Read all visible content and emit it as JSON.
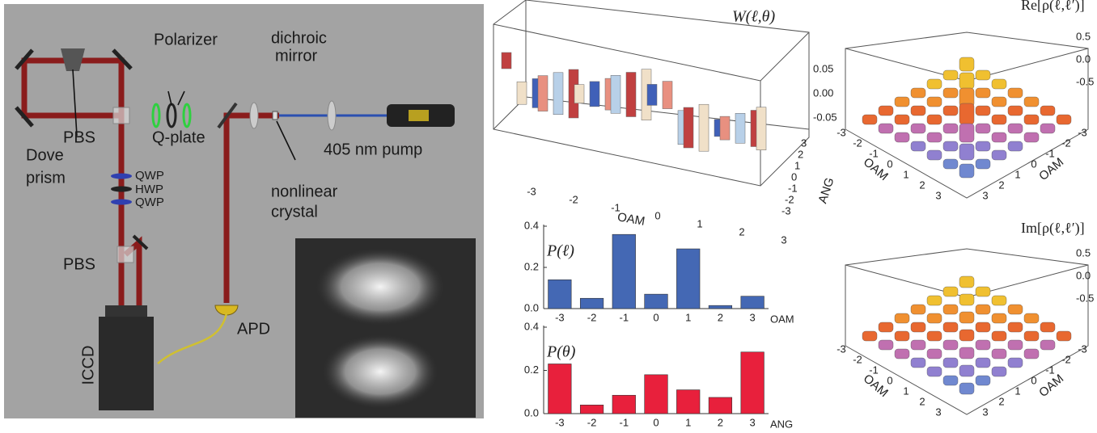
{
  "setup": {
    "polarizer": "Polarizer",
    "dichroic": "dichroic",
    "mirror": "mirror",
    "pbs_top": "PBS",
    "qplate": "Q-plate",
    "dove": "Dove",
    "prism": "prism",
    "pump": "405 nm pump",
    "qwp1": "QWP",
    "hwp": "HWP",
    "qwp2": "QWP",
    "nonlinear": "nonlinear",
    "crystal": "crystal",
    "pbs_bottom": "PBS",
    "apd": "APD",
    "iccd": "ICCD"
  },
  "wigner": {
    "title": "W(ℓ,θ)",
    "zticks": [
      "0.05",
      "0.00",
      "-0.05"
    ],
    "oam_ticks": [
      "-3",
      "-2",
      "-1",
      "0",
      "1",
      "2",
      "3"
    ],
    "ang_ticks": [
      "3",
      "2",
      "1",
      "0",
      "-1",
      "-2",
      "-3"
    ],
    "xlabel": "OAM",
    "ylabel": "ANG"
  },
  "density": [
    {
      "title": "Re[ρ(ℓ,ℓ′)]",
      "zticks": [
        "0.5",
        "0.0",
        "-0.5"
      ],
      "left_ticks": [
        "-3",
        "-2",
        "-1",
        "0",
        "1",
        "2",
        "3"
      ],
      "right_ticks": [
        "-3",
        "-2",
        "-1",
        "0",
        "1",
        "2",
        "3"
      ],
      "left_label": "OAM",
      "right_label": "OAM"
    },
    {
      "title": "Im[ρ(ℓ,ℓ′)]",
      "zticks": [
        "0.5",
        "0.0",
        "-0.5"
      ],
      "left_ticks": [
        "-3",
        "-2",
        "-1",
        "0",
        "1",
        "2",
        "3"
      ],
      "right_ticks": [
        "-3",
        "-2",
        "-1",
        "0",
        "1",
        "2",
        "3"
      ],
      "left_label": "OAM",
      "right_label": "OAM"
    }
  ],
  "chart_data": [
    {
      "type": "bar",
      "title": "P(ℓ)",
      "xlabel": "OAM",
      "color": "#4468b4",
      "categories": [
        "-3",
        "-2",
        "-1",
        "0",
        "1",
        "2",
        "3"
      ],
      "values": [
        0.14,
        0.05,
        0.36,
        0.07,
        0.29,
        0.015,
        0.06
      ],
      "ylim": [
        0,
        0.4
      ],
      "yticks": [
        {
          "value": 0,
          "label": "0.0"
        },
        0.2,
        0.4
      ]
    },
    {
      "type": "bar",
      "title": "P(θ)",
      "xlabel": "ANG",
      "color": "#e8203c",
      "categories": [
        "-3",
        "-2",
        "-1",
        "0",
        "1",
        "2",
        "3"
      ],
      "values": [
        0.23,
        0.04,
        0.085,
        0.18,
        0.11,
        0.075,
        0.285
      ],
      "ylim": [
        0,
        0.4
      ],
      "yticks": [
        {
          "value": 0,
          "label": "0.0"
        },
        0.2,
        0.4
      ]
    }
  ]
}
